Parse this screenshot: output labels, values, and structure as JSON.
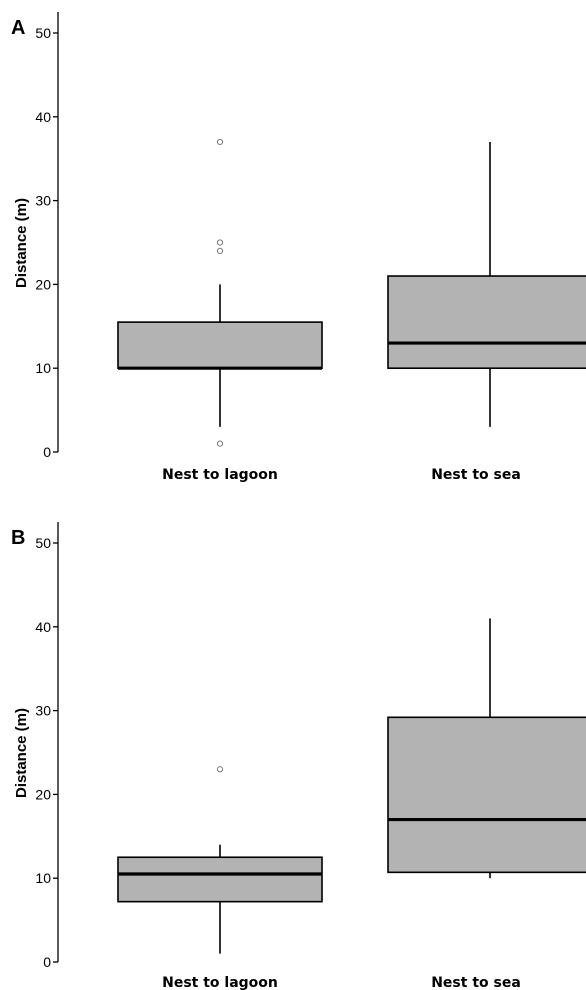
{
  "colors": {
    "box_fill": "#b3b3b3",
    "stroke": "#000000",
    "outlier": "#777777",
    "background": "#ffffff"
  },
  "chart_data": [
    {
      "type": "boxplot",
      "panel_label": "A",
      "ylabel": "Distance (m)",
      "ylim": [
        0,
        52
      ],
      "yticks": [
        0,
        10,
        20,
        30,
        40,
        50
      ],
      "grid": false,
      "categories": [
        "Nest to lagoon",
        "Nest to sea"
      ],
      "boxes": [
        {
          "category": "Nest to lagoon",
          "whisker_low": 3,
          "q1": 10,
          "median": 10,
          "q3": 15.5,
          "whisker_high": 20,
          "outliers": [
            37,
            25,
            24,
            1
          ]
        },
        {
          "category": "Nest to sea",
          "whisker_low": 3,
          "q1": 10,
          "median": 13,
          "q3": 21,
          "whisker_high": 37,
          "outliers": []
        }
      ]
    },
    {
      "type": "boxplot",
      "panel_label": "B",
      "ylabel": "Distance (m)",
      "ylim": [
        0,
        52
      ],
      "yticks": [
        0,
        10,
        20,
        30,
        40,
        50
      ],
      "grid": false,
      "categories": [
        "Nest to lagoon",
        "Nest to sea"
      ],
      "boxes": [
        {
          "category": "Nest to lagoon",
          "whisker_low": 1,
          "q1": 7.2,
          "median": 10.5,
          "q3": 12.5,
          "whisker_high": 14,
          "outliers": [
            23
          ]
        },
        {
          "category": "Nest to sea",
          "whisker_low": 10,
          "q1": 10.7,
          "median": 17,
          "q3": 29.2,
          "whisker_high": 41,
          "outliers": []
        }
      ]
    }
  ]
}
